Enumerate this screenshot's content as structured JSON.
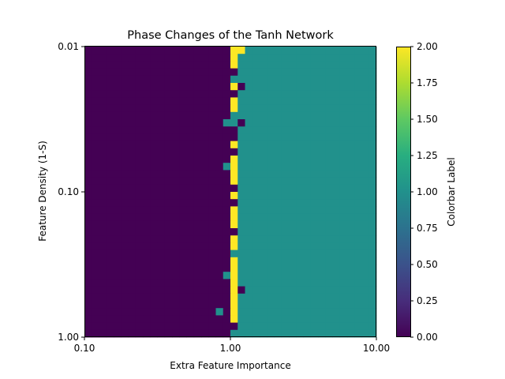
{
  "chart_data": {
    "type": "heatmap",
    "title": "Phase Changes of the Tanh Network",
    "xlabel": "Extra Feature Importance",
    "ylabel": "Feature Density (1-S)",
    "x_scale": "log",
    "y_scale": "log",
    "xlim": [
      0.1,
      10.0
    ],
    "ylim": [
      1.0,
      0.01
    ],
    "xticks": [
      "0.10",
      "1.00",
      "10.00"
    ],
    "yticks": [
      "0.01",
      "0.10",
      "1.00"
    ],
    "grid": false,
    "colorbar": {
      "label": "Colorbar Label",
      "range": [
        0.0,
        2.0
      ],
      "ticks": [
        "0.00",
        "0.25",
        "0.50",
        "0.75",
        "1.00",
        "1.25",
        "1.50",
        "1.75",
        "2.00"
      ],
      "colormap": "viridis"
    },
    "grid_size": {
      "columns": 40,
      "rows": 40
    },
    "phases": [
      {
        "value": 0,
        "region": "extra feature importance below ~0.9"
      },
      {
        "value": 1,
        "region": "extra feature importance above ~1.1"
      },
      {
        "value": 2,
        "region": "boundary near extra feature importance 1.0"
      }
    ],
    "boundary_column": 20,
    "rows": [
      {
        "row": 0,
        "col20": 2,
        "col21": 2
      },
      {
        "row": 1,
        "col20": 2
      },
      {
        "row": 2,
        "col20": 2
      },
      {
        "row": 3,
        "col20": 0
      },
      {
        "row": 4,
        "col20": 1
      },
      {
        "row": 5,
        "col20": 2,
        "col21": 0
      },
      {
        "row": 6,
        "col20": 0
      },
      {
        "row": 7,
        "col20": 2
      },
      {
        "row": 8,
        "col20": 2
      },
      {
        "row": 9,
        "col20": 1
      },
      {
        "row": 10,
        "col19": 1,
        "col20": 1,
        "col21": 0
      },
      {
        "row": 11,
        "col20": 0
      },
      {
        "row": 12,
        "col20": 0
      },
      {
        "row": 13,
        "col20": 2
      },
      {
        "row": 14,
        "col20": 0
      },
      {
        "row": 15,
        "col20": 2
      },
      {
        "row": 16,
        "col19": 1,
        "col20": 2
      },
      {
        "row": 17,
        "col20": 2
      },
      {
        "row": 18,
        "col20": 2
      },
      {
        "row": 19,
        "col20": 0
      },
      {
        "row": 20,
        "col20": 2
      },
      {
        "row": 21,
        "col20": 0
      },
      {
        "row": 22,
        "col20": 2
      },
      {
        "row": 23,
        "col20": 2
      },
      {
        "row": 24,
        "col20": 2
      },
      {
        "row": 25,
        "col20": 0
      },
      {
        "row": 26,
        "col20": 2
      },
      {
        "row": 27,
        "col20": 2
      },
      {
        "row": 28,
        "col20": 1
      },
      {
        "row": 29,
        "col20": 2
      },
      {
        "row": 30,
        "col20": 2
      },
      {
        "row": 31,
        "col19": 1,
        "col20": 2
      },
      {
        "row": 32,
        "col20": 2
      },
      {
        "row": 33,
        "col20": 2,
        "col21": 0
      },
      {
        "row": 34,
        "col20": 2
      },
      {
        "row": 35,
        "col20": 2
      },
      {
        "row": 36,
        "col18": 1,
        "col20": 2
      },
      {
        "row": 37,
        "col20": 2
      },
      {
        "row": 38,
        "col20": 0
      },
      {
        "row": 39,
        "col20": 1
      }
    ]
  }
}
